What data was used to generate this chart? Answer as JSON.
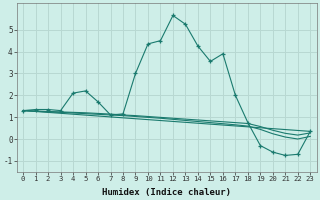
{
  "xlabel": "Humidex (Indice chaleur)",
  "bg_color": "#ceeee8",
  "grid_color": "#b8d8d2",
  "line_color": "#1a7a6e",
  "xlim": [
    -0.5,
    23.5
  ],
  "ylim": [
    -1.5,
    6.2
  ],
  "yticks": [
    -1,
    0,
    1,
    2,
    3,
    4,
    5
  ],
  "xticks": [
    0,
    1,
    2,
    3,
    4,
    5,
    6,
    7,
    8,
    9,
    10,
    11,
    12,
    13,
    14,
    15,
    16,
    17,
    18,
    19,
    20,
    21,
    22,
    23
  ],
  "main_line": {
    "x": [
      0,
      1,
      2,
      3,
      4,
      5,
      6,
      7,
      8,
      9,
      10,
      11,
      12,
      13,
      14,
      15,
      16,
      17,
      18,
      19,
      20,
      21,
      22,
      23
    ],
    "y": [
      1.3,
      1.35,
      1.35,
      1.3,
      2.1,
      2.2,
      1.7,
      1.1,
      1.15,
      3.0,
      4.35,
      4.5,
      5.65,
      5.25,
      4.25,
      3.55,
      3.9,
      2.0,
      0.75,
      -0.3,
      -0.6,
      -0.75,
      -0.7,
      0.35
    ]
  },
  "line2": {
    "x": [
      0,
      1,
      2,
      3,
      4,
      5,
      6,
      7,
      8,
      9,
      10,
      11,
      12,
      13,
      14,
      15,
      16,
      17,
      18,
      19,
      20,
      21,
      22,
      23
    ],
    "y": [
      1.3,
      1.28,
      1.26,
      1.24,
      1.22,
      1.2,
      1.17,
      1.14,
      1.1,
      1.07,
      1.03,
      0.99,
      0.95,
      0.91,
      0.87,
      0.83,
      0.79,
      0.75,
      0.71,
      0.57,
      0.4,
      0.26,
      0.18,
      0.28
    ]
  },
  "line3": {
    "x": [
      0,
      1,
      2,
      3,
      4,
      5,
      6,
      7,
      8,
      9,
      10,
      11,
      12,
      13,
      14,
      15,
      16,
      17,
      18,
      19,
      20,
      21,
      22,
      23
    ],
    "y": [
      1.3,
      1.27,
      1.24,
      1.22,
      1.19,
      1.16,
      1.13,
      1.1,
      1.07,
      1.03,
      0.99,
      0.95,
      0.9,
      0.85,
      0.8,
      0.75,
      0.7,
      0.65,
      0.59,
      0.44,
      0.24,
      0.09,
      0.0,
      0.12
    ]
  },
  "line4_x": [
    0,
    23
  ],
  "line4_y": [
    1.3,
    0.35
  ]
}
